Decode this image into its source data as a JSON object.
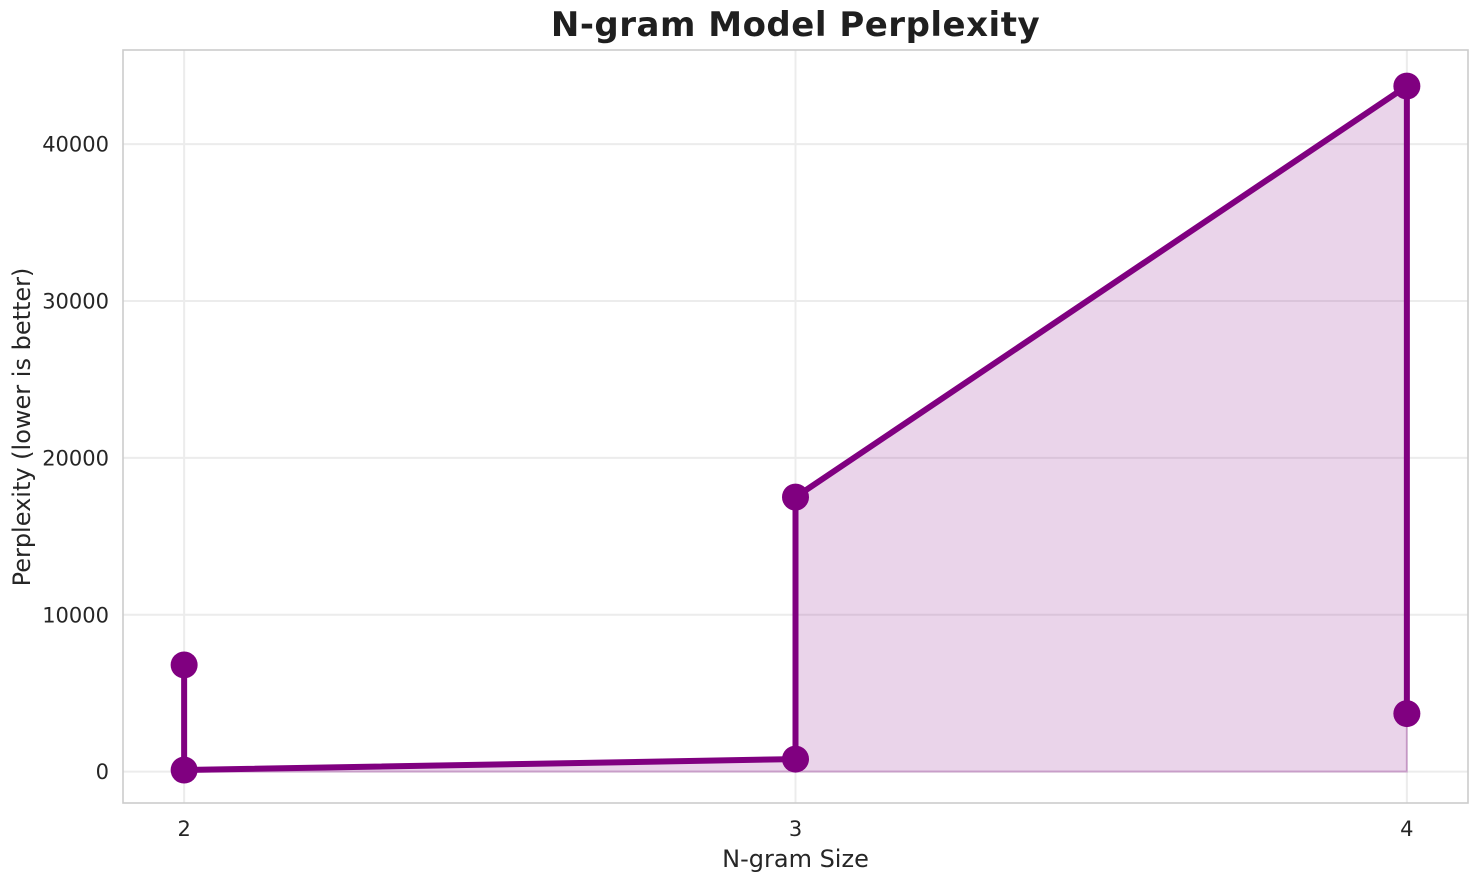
{
  "chart_data": {
    "type": "line",
    "title": "N-gram Model Perplexity",
    "xlabel": "N-gram Size",
    "ylabel": "Perplexity (lower is better)",
    "x": [
      2,
      2,
      3,
      3,
      4,
      4
    ],
    "y": [
      6800,
      100,
      800,
      17500,
      43700,
      3700
    ],
    "fill_to_zero": true,
    "xticks": [
      2,
      3,
      4
    ],
    "yticks": [
      0,
      10000,
      20000,
      30000,
      40000
    ],
    "xlim": [
      1.9,
      4.1
    ],
    "ylim": [
      -2000,
      46000
    ],
    "grid": true,
    "legend": false,
    "line_color": "#800080",
    "marker": "circle",
    "fill_color": "#800080",
    "fill_opacity": 0.17,
    "grid_color": "#ececec",
    "spine_color": "#cccccc",
    "text_color": "#262626",
    "title_color": "#1f1f1f",
    "background_color": "#ffffff"
  }
}
